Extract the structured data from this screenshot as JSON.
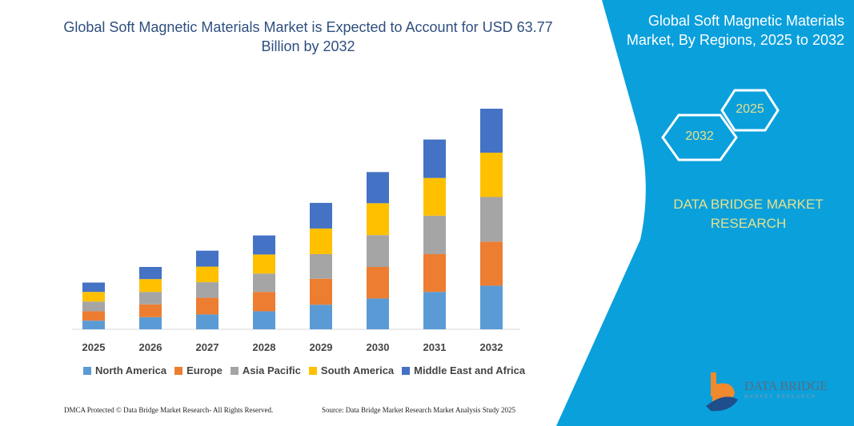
{
  "title": "Global Soft Magnetic Materials Market is Expected to Account for USD 63.77 Billion by 2032",
  "side_panel": {
    "title": "Global Soft Magnetic Materials Market, By Regions, 2025 to 2032",
    "hex_labels": [
      "2032",
      "2025"
    ],
    "brand": "DATA BRIDGE MARKET RESEARCH",
    "logo_text": "DATA BRIDGE",
    "logo_subtext": "MARKET RESEARCH",
    "color": "#0aa0dc"
  },
  "footer": {
    "left": "DMCA Protected © Data Bridge Market Research- All Rights Reserved.",
    "right": "Source: Data Bridge Market Research Market Analysis Study 2025"
  },
  "chart_data": {
    "type": "bar",
    "stacked": true,
    "title": "Global Soft Magnetic Materials Market is Expected to Account for USD 63.77 Billion by 2032",
    "xlabel": "",
    "ylabel": "",
    "ylim": [
      0,
      64
    ],
    "grid": false,
    "legend_position": "bottom",
    "categories": [
      "2025",
      "2026",
      "2027",
      "2028",
      "2029",
      "2030",
      "2031",
      "2032"
    ],
    "series": [
      {
        "name": "North America",
        "color": "#5b9bd5",
        "values": [
          2.5,
          3.5,
          4.3,
          5.2,
          7.1,
          8.9,
          10.8,
          12.6
        ]
      },
      {
        "name": "Europe",
        "color": "#ed7d31",
        "values": [
          2.7,
          3.7,
          4.8,
          5.6,
          7.5,
          9.1,
          10.9,
          12.7
        ]
      },
      {
        "name": "Asia Pacific",
        "color": "#a5a5a5",
        "values": [
          2.8,
          3.6,
          4.5,
          5.3,
          7.1,
          9.2,
          11.1,
          12.9
        ]
      },
      {
        "name": "South America",
        "color": "#ffc000",
        "values": [
          2.8,
          3.7,
          4.5,
          5.5,
          7.4,
          9.2,
          10.9,
          12.8
        ]
      },
      {
        "name": "Middle East and Africa",
        "color": "#4472c4",
        "values": [
          2.7,
          3.5,
          4.6,
          5.5,
          7.4,
          9.0,
          11.1,
          12.7
        ]
      }
    ]
  }
}
